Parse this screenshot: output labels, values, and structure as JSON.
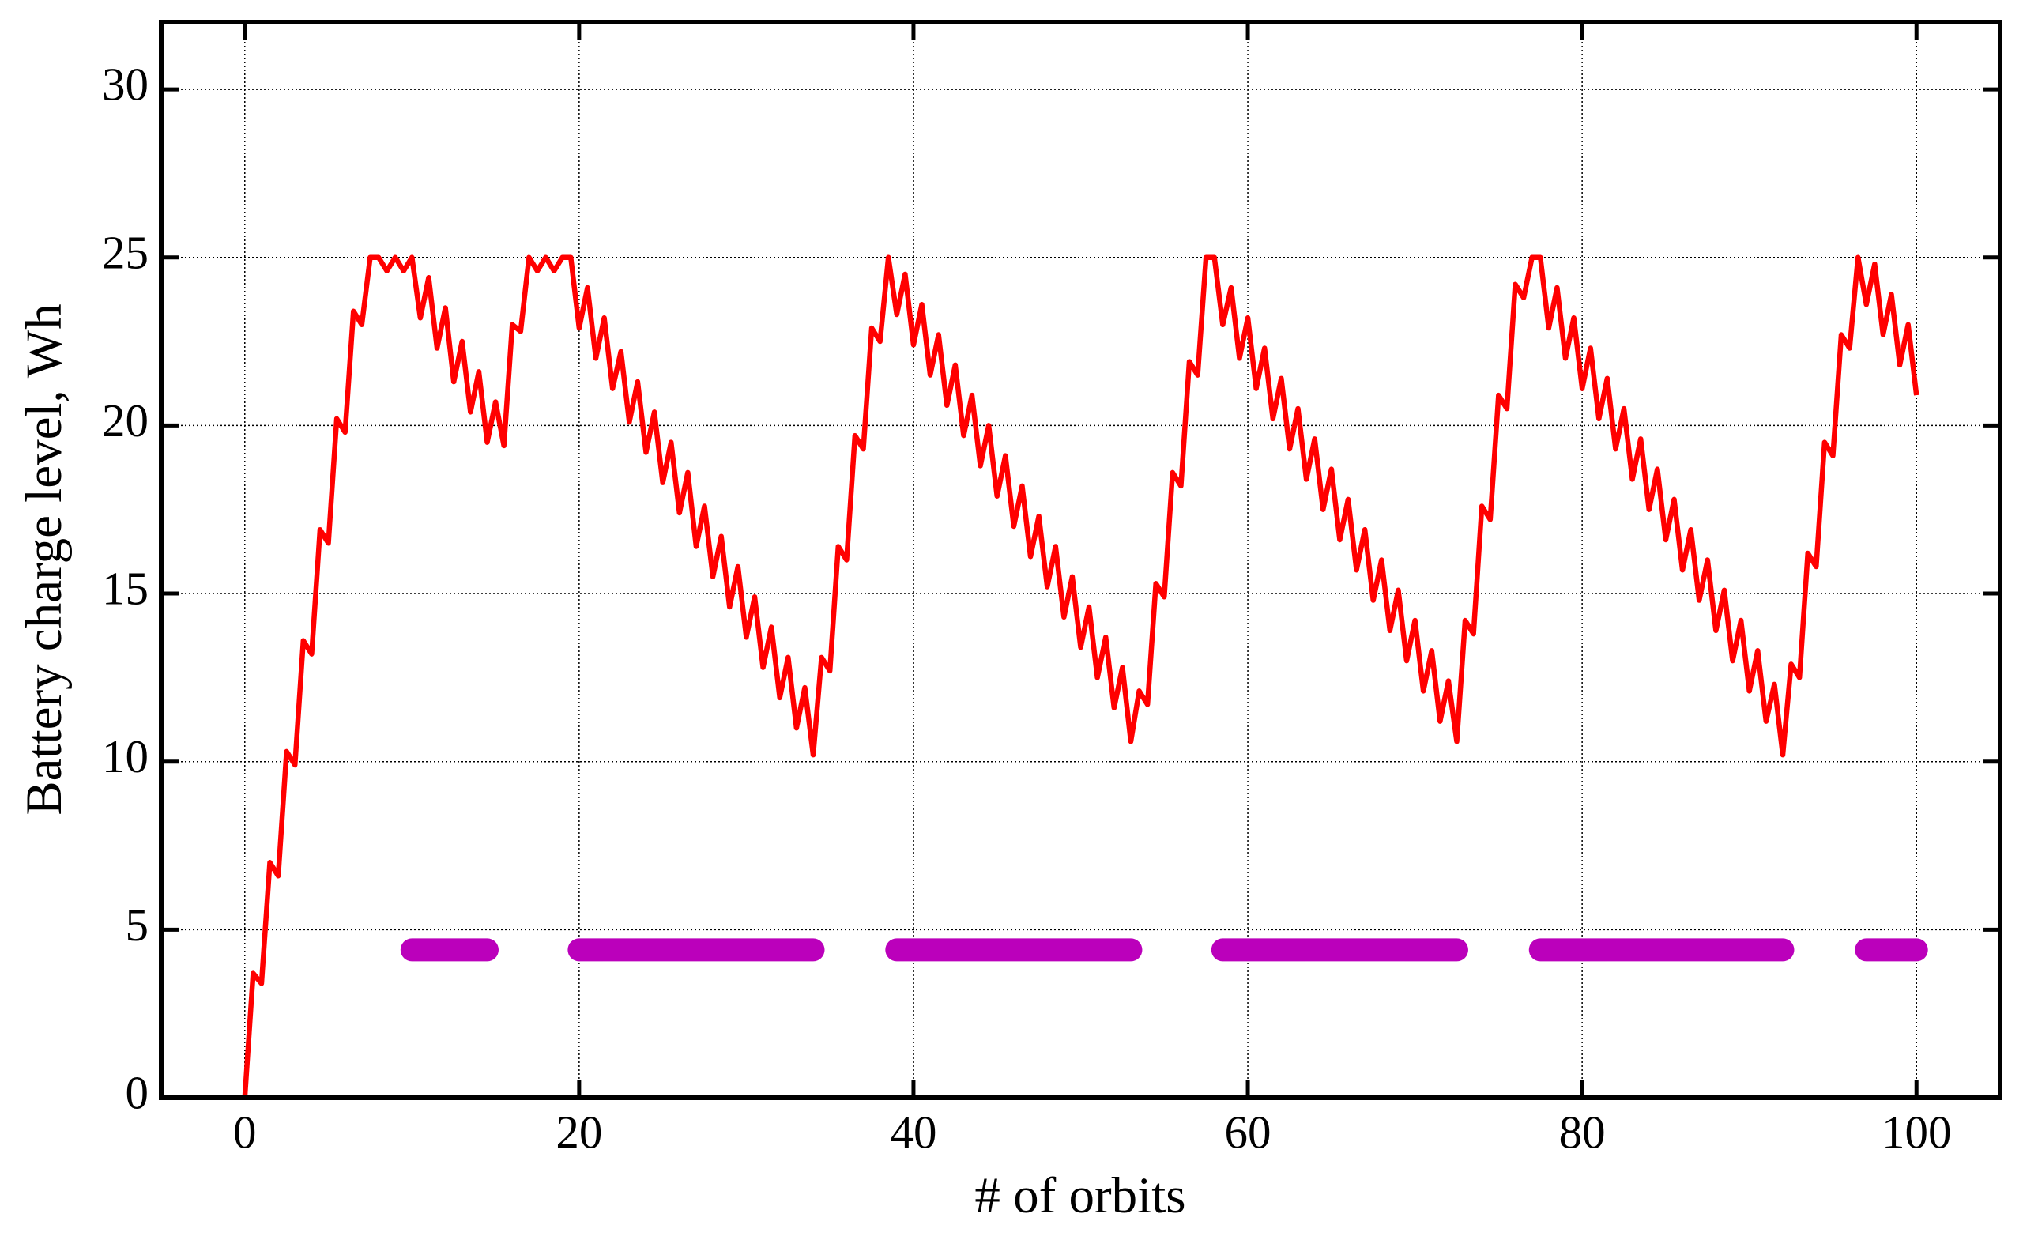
{
  "chart_data": {
    "type": "line",
    "x_label": "# of orbits",
    "y_label": "Battery charge level, Wh",
    "xlim": [
      -5,
      105
    ],
    "ylim": [
      0,
      32
    ],
    "xticks": [
      0,
      20,
      40,
      60,
      80,
      100
    ],
    "yticks": [
      0,
      5,
      10,
      15,
      20,
      25,
      30
    ],
    "grid": true,
    "color": "#ff0000",
    "band_color": "#bb00bb",
    "x": [
      0,
      0.5,
      1,
      1.5,
      2,
      2.5,
      3,
      3.5,
      4,
      4.5,
      5,
      5.5,
      6,
      6.5,
      7,
      7.5,
      8,
      8.5,
      9,
      9.5,
      10,
      10.5,
      11,
      11.5,
      12,
      12.5,
      13,
      13.5,
      14,
      14.5,
      15,
      15.5,
      16,
      16.5,
      17,
      17.5,
      18,
      18.5,
      19,
      19.5,
      20,
      20.5,
      21,
      21.5,
      22,
      22.5,
      23,
      23.5,
      24,
      24.5,
      25,
      25.5,
      26,
      26.5,
      27,
      27.5,
      28,
      28.5,
      29,
      29.5,
      30,
      30.5,
      31,
      31.5,
      32,
      32.5,
      33,
      33.5,
      34,
      34.5,
      35,
      35.5,
      36,
      36.5,
      37,
      37.5,
      38,
      38.5,
      39,
      39.5,
      40,
      40.5,
      41,
      41.5,
      42,
      42.5,
      43,
      43.5,
      44,
      44.5,
      45,
      45.5,
      46,
      46.5,
      47,
      47.5,
      48,
      48.5,
      49,
      49.5,
      50,
      50.5,
      51,
      51.5,
      52,
      52.5,
      53,
      53.5,
      54,
      54.5,
      55,
      55.5,
      56,
      56.5,
      57,
      57.5,
      58,
      58.5,
      59,
      59.5,
      60,
      60.5,
      61,
      61.5,
      62,
      62.5,
      63,
      63.5,
      64,
      64.5,
      65,
      65.5,
      66,
      66.5,
      67,
      67.5,
      68,
      68.5,
      69,
      69.5,
      70,
      70.5,
      71,
      71.5,
      72,
      72.5,
      73,
      73.5,
      74,
      74.5,
      75,
      75.5,
      76,
      76.5,
      77,
      77.5,
      78,
      78.5,
      79,
      79.5,
      80,
      80.5,
      81,
      81.5,
      82,
      82.5,
      83,
      83.5,
      84,
      84.5,
      85,
      85.5,
      86,
      86.5,
      87,
      87.5,
      88,
      88.5,
      89,
      89.5,
      90,
      90.5,
      91,
      91.5,
      92,
      92.5,
      93,
      93.5,
      94,
      94.5,
      95,
      95.5,
      96,
      96.5,
      97,
      97.5,
      98,
      98.5,
      99,
      99.5,
      100
    ],
    "values": [
      0,
      3.7,
      3.4,
      7,
      6.6,
      10.3,
      9.9,
      13.6,
      13.2,
      16.9,
      16.5,
      20.2,
      19.8,
      23.4,
      23,
      25,
      25,
      24.6,
      25,
      24.6,
      25,
      23.2,
      24.4,
      22.3,
      23.5,
      21.3,
      22.5,
      20.4,
      21.6,
      19.5,
      20.7,
      19.4,
      23,
      22.8,
      25,
      24.6,
      25,
      24.6,
      25,
      25,
      22.9,
      24.1,
      22,
      23.2,
      21.1,
      22.2,
      20.1,
      21.3,
      19.2,
      20.4,
      18.3,
      19.5,
      17.4,
      18.6,
      16.4,
      17.6,
      15.5,
      16.7,
      14.6,
      15.8,
      13.7,
      14.9,
      12.8,
      14.0,
      11.9,
      13.1,
      11.0,
      12.2,
      10.2,
      13.1,
      12.7,
      16.4,
      16.0,
      19.7,
      19.3,
      22.9,
      22.5,
      25,
      23.3,
      24.5,
      22.4,
      23.6,
      21.5,
      22.7,
      20.6,
      21.8,
      19.7,
      20.9,
      18.8,
      20.0,
      17.9,
      19.1,
      17.0,
      18.2,
      16.1,
      17.3,
      15.2,
      16.4,
      14.3,
      15.5,
      13.4,
      14.6,
      12.5,
      13.7,
      11.6,
      12.8,
      10.6,
      12.1,
      11.7,
      15.3,
      14.9,
      18.6,
      18.2,
      21.9,
      21.5,
      25,
      25,
      23,
      24.1,
      22.0,
      23.2,
      21.1,
      22.3,
      20.2,
      21.4,
      19.3,
      20.5,
      18.4,
      19.6,
      17.5,
      18.7,
      16.6,
      17.8,
      15.7,
      16.9,
      14.8,
      16.0,
      13.9,
      15.1,
      13.0,
      14.2,
      12.1,
      13.3,
      11.2,
      12.4,
      10.6,
      14.2,
      13.8,
      17.6,
      17.2,
      20.9,
      20.5,
      24.2,
      23.8,
      25,
      25,
      22.9,
      24.1,
      22.0,
      23.2,
      21.1,
      22.3,
      20.2,
      21.4,
      19.3,
      20.5,
      18.4,
      19.6,
      17.5,
      18.7,
      16.6,
      17.8,
      15.7,
      16.9,
      14.8,
      16.0,
      13.9,
      15.1,
      13.0,
      14.2,
      12.1,
      13.3,
      11.2,
      12.3,
      10.2,
      12.9,
      12.5,
      16.2,
      15.8,
      19.5,
      19.1,
      22.7,
      22.3,
      25,
      23.6,
      24.8,
      22.7,
      23.9,
      21.8,
      23.0,
      20.9
    ],
    "bands": [
      {
        "start": 10,
        "end": 14.5,
        "y": 4.4
      },
      {
        "start": 20,
        "end": 34,
        "y": 4.4
      },
      {
        "start": 39,
        "end": 53,
        "y": 4.4
      },
      {
        "start": 58.5,
        "end": 72.5,
        "y": 4.4
      },
      {
        "start": 77.5,
        "end": 92,
        "y": 4.4
      },
      {
        "start": 97,
        "end": 100,
        "y": 4.4
      }
    ]
  }
}
